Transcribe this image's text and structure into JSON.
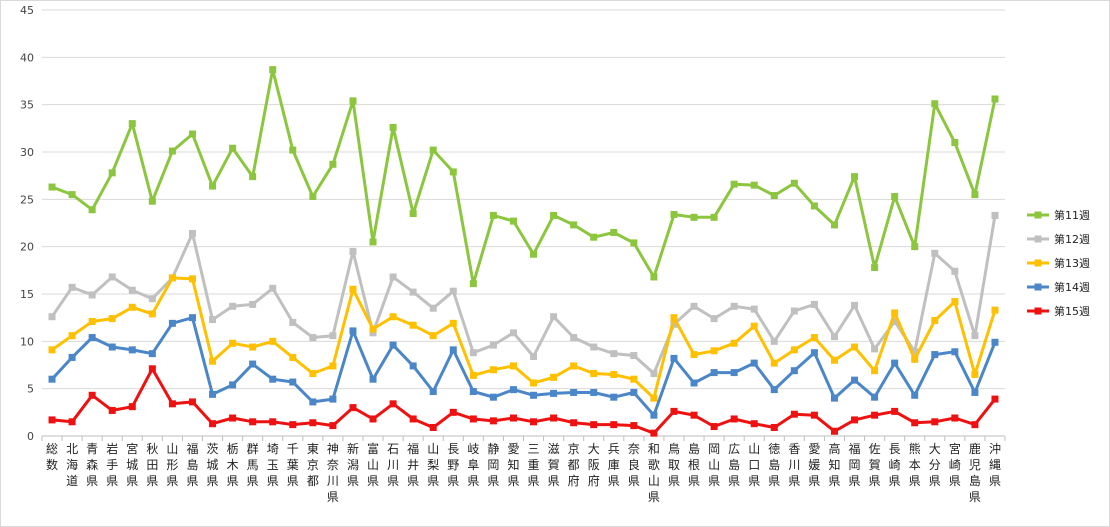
{
  "chart_data": {
    "type": "line",
    "title": "",
    "xlabel": "",
    "ylabel": "",
    "ylim": [
      0,
      45
    ],
    "yticks": [
      0,
      5,
      10,
      15,
      20,
      25,
      30,
      35,
      40,
      45
    ],
    "grid": true,
    "legend_position": "right",
    "categories": [
      "総数",
      "北海道",
      "青森県",
      "岩手県",
      "宮城県",
      "秋田県",
      "山形県",
      "福島県",
      "茨城県",
      "栃木県",
      "群馬県",
      "埼玉県",
      "千葉県",
      "東京都",
      "神奈川県",
      "新潟県",
      "富山県",
      "石川県",
      "福井県",
      "山梨県",
      "長野県",
      "岐阜県",
      "静岡県",
      "愛知県",
      "三重県",
      "滋賀県",
      "京都府",
      "大阪府",
      "兵庫県",
      "奈良県",
      "和歌山県",
      "鳥取県",
      "島根県",
      "岡山県",
      "広島県",
      "山口県",
      "徳島県",
      "香川県",
      "愛媛県",
      "高知県",
      "福岡県",
      "佐賀県",
      "長崎県",
      "熊本県",
      "大分県",
      "宮崎県",
      "鹿児島県",
      "沖縄県"
    ],
    "series": [
      {
        "name": "第11週",
        "color": "#8cc63f",
        "marker": "square",
        "values": [
          26.3,
          25.5,
          23.9,
          27.8,
          33.0,
          24.8,
          30.1,
          31.9,
          26.4,
          30.4,
          27.4,
          38.7,
          30.2,
          25.3,
          28.7,
          35.4,
          20.5,
          32.6,
          23.5,
          30.2,
          27.9,
          16.1,
          23.3,
          22.7,
          19.2,
          23.3,
          22.3,
          21.0,
          21.5,
          20.4,
          16.8,
          23.4,
          23.1,
          23.1,
          26.6,
          26.5,
          25.4,
          26.7,
          24.3,
          22.3,
          27.4,
          17.8,
          25.3,
          20.0,
          35.1,
          31.0,
          25.5,
          35.6
        ]
      },
      {
        "name": "第12週",
        "color": "#c0c0c0",
        "marker": "square",
        "values": [
          12.6,
          15.7,
          14.9,
          16.8,
          15.4,
          14.5,
          16.7,
          21.4,
          12.3,
          13.7,
          13.9,
          15.6,
          12.0,
          10.4,
          10.6,
          19.5,
          10.9,
          16.8,
          15.2,
          13.5,
          15.3,
          8.8,
          9.6,
          10.9,
          8.4,
          12.6,
          10.4,
          9.4,
          8.7,
          8.5,
          6.6,
          11.8,
          13.7,
          12.4,
          13.7,
          13.4,
          10.0,
          13.2,
          13.9,
          10.5,
          13.8,
          9.2,
          12.1,
          8.9,
          19.3,
          17.4,
          10.6,
          23.3
        ]
      },
      {
        "name": "第13週",
        "color": "#ffc000",
        "marker": "square",
        "values": [
          9.1,
          10.6,
          12.1,
          12.4,
          13.6,
          12.9,
          16.7,
          16.6,
          7.9,
          9.8,
          9.4,
          10.0,
          8.3,
          6.6,
          7.4,
          15.5,
          11.3,
          12.6,
          11.7,
          10.6,
          11.9,
          6.4,
          7.0,
          7.4,
          5.6,
          6.2,
          7.4,
          6.6,
          6.5,
          6.0,
          4.0,
          12.5,
          8.6,
          9.0,
          9.8,
          11.6,
          7.7,
          9.1,
          10.4,
          8.0,
          9.4,
          6.9,
          13.0,
          8.1,
          12.2,
          14.2,
          6.5,
          13.3
        ]
      },
      {
        "name": "第14週",
        "color": "#4a86c8",
        "marker": "square",
        "values": [
          6.0,
          8.3,
          10.4,
          9.4,
          9.1,
          8.7,
          11.9,
          12.5,
          4.4,
          5.4,
          7.6,
          6.0,
          5.7,
          3.6,
          3.9,
          11.1,
          6.0,
          9.6,
          7.4,
          4.7,
          9.1,
          4.7,
          4.1,
          4.9,
          4.3,
          4.5,
          4.6,
          4.6,
          4.1,
          4.6,
          2.2,
          8.2,
          5.6,
          6.7,
          6.7,
          7.7,
          4.9,
          6.9,
          8.8,
          4.0,
          5.9,
          4.1,
          7.7,
          4.3,
          8.6,
          8.9,
          4.6,
          9.9
        ]
      },
      {
        "name": "第15週",
        "color": "#ee1111",
        "marker": "square",
        "values": [
          1.7,
          1.5,
          4.3,
          2.7,
          3.1,
          7.1,
          3.4,
          3.6,
          1.3,
          1.9,
          1.5,
          1.5,
          1.2,
          1.4,
          1.1,
          3.0,
          1.8,
          3.4,
          1.8,
          0.9,
          2.5,
          1.8,
          1.6,
          1.9,
          1.5,
          1.9,
          1.4,
          1.2,
          1.2,
          1.1,
          0.3,
          2.6,
          2.2,
          1.0,
          1.8,
          1.3,
          0.9,
          2.3,
          2.2,
          0.5,
          1.7,
          2.2,
          2.6,
          1.4,
          1.5,
          1.9,
          1.2,
          3.9
        ]
      }
    ]
  }
}
